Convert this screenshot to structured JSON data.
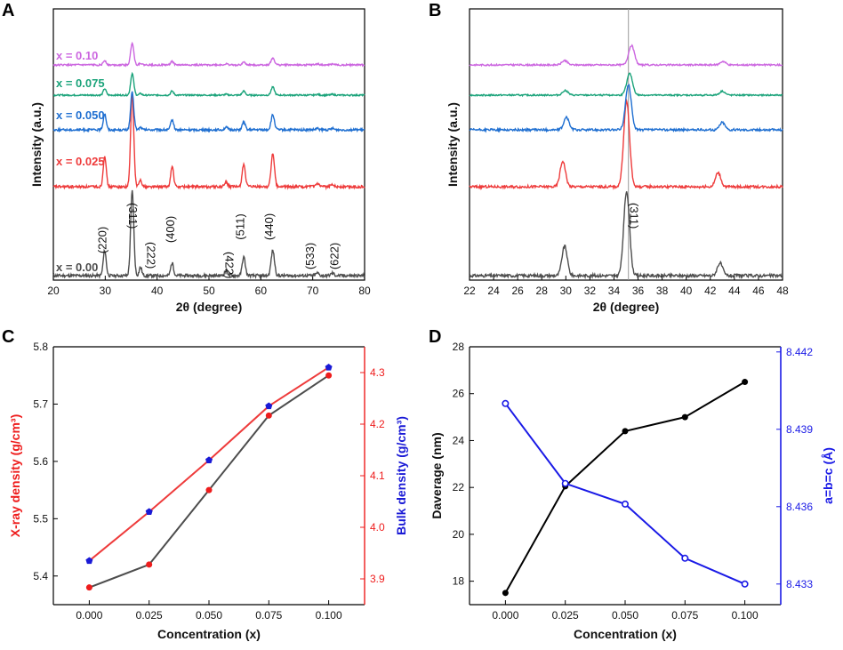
{
  "chart_data": [
    {
      "panel": "A",
      "type": "line",
      "xlabel": "2θ (degree)",
      "ylabel": "Intensity (a.u.)",
      "xlim": [
        20,
        80
      ],
      "xticks": [
        20,
        30,
        40,
        50,
        60,
        70,
        80
      ],
      "peaks": [
        29.9,
        35.2,
        36.8,
        42.9,
        53.3,
        56.7,
        62.3,
        70.9,
        73.8
      ],
      "peak_labels": [
        {
          "label": "(220)",
          "x": 29.9
        },
        {
          "label": "(311)",
          "x": 35.2
        },
        {
          "label": "(222)",
          "x": 36.8
        },
        {
          "label": "(400)",
          "x": 42.9
        },
        {
          "label": "(422)",
          "x": 53.3
        },
        {
          "label": "(511)",
          "x": 56.7
        },
        {
          "label": "(440)",
          "x": 62.3
        },
        {
          "label": "(533)",
          "x": 70.9
        },
        {
          "label": "(622)",
          "x": 73.8
        }
      ],
      "series": [
        {
          "name": "x = 0.00",
          "color": "#4d4d4d",
          "heights": [
            0.3,
            1.0,
            0.1,
            0.15,
            0.06,
            0.22,
            0.3,
            0.03,
            0.03
          ]
        },
        {
          "name": "x = 0.025",
          "color": "#ee3b3b",
          "heights": [
            0.22,
            0.65,
            0.05,
            0.14,
            0.03,
            0.16,
            0.23,
            0.02,
            0.02
          ]
        },
        {
          "name": "x = 0.050",
          "color": "#1f6fd1",
          "heights": [
            0.13,
            0.3,
            0.02,
            0.08,
            0.02,
            0.06,
            0.12,
            0.01,
            0.01
          ]
        },
        {
          "name": "x = 0.075",
          "color": "#1aa37a",
          "heights": [
            0.08,
            0.27,
            0.02,
            0.05,
            0.01,
            0.05,
            0.1,
            0.01,
            0.01
          ]
        },
        {
          "name": "x = 0.10",
          "color": "#cc66e0",
          "heights": [
            0.05,
            0.25,
            0.02,
            0.04,
            0.01,
            0.03,
            0.08,
            0.01,
            0.01
          ]
        }
      ]
    },
    {
      "panel": "B",
      "type": "line",
      "xlabel": "2θ (degree)",
      "ylabel": "Intensity (a.u.)",
      "xlim": [
        22,
        48
      ],
      "xticks": [
        22,
        24,
        26,
        28,
        30,
        32,
        34,
        36,
        38,
        40,
        42,
        44,
        46,
        48
      ],
      "reference_line_x": 35.2,
      "annotation": {
        "label": "(311)",
        "x": 35.2
      },
      "peaks": [
        29.9,
        35.2,
        42.9
      ],
      "series": [
        {
          "name": "x = 0.00",
          "color": "#4d4d4d",
          "centers": [
            29.9,
            35.05,
            42.8
          ],
          "heights": [
            0.35,
            1.0,
            0.15
          ]
        },
        {
          "name": "x = 0.025",
          "color": "#ee3b3b",
          "centers": [
            29.75,
            35.05,
            42.65
          ],
          "heights": [
            0.18,
            0.6,
            0.1
          ]
        },
        {
          "name": "x = 0.050",
          "color": "#1f6fd1",
          "centers": [
            30.05,
            35.2,
            43.0
          ],
          "heights": [
            0.1,
            0.36,
            0.06
          ]
        },
        {
          "name": "x = 0.075",
          "color": "#1aa37a",
          "centers": [
            29.95,
            35.3,
            43.0
          ],
          "heights": [
            0.06,
            0.27,
            0.05
          ]
        },
        {
          "name": "x = 0.10",
          "color": "#cc66e0",
          "centers": [
            29.9,
            35.45,
            43.05
          ],
          "heights": [
            0.05,
            0.22,
            0.04
          ]
        }
      ]
    },
    {
      "panel": "C",
      "type": "line",
      "xlabel": "Concentration (x)",
      "ylabel_left": "X-ray density (g/cm³)",
      "ylabel_right": "Bulk density (g/cm³)",
      "x": [
        0.0,
        0.025,
        0.05,
        0.075,
        0.1
      ],
      "xticks": [
        "0.000",
        "0.025",
        "0.050",
        "0.075",
        "0.100"
      ],
      "xlim": [
        -0.015,
        0.115
      ],
      "ylim_left": [
        5.35,
        5.8
      ],
      "yticks_left": [
        "5.4",
        "5.5",
        "5.6",
        "5.7",
        "5.8"
      ],
      "ylim_right": [
        3.85,
        4.35
      ],
      "yticks_right": [
        "3.9",
        "4.0",
        "4.1",
        "4.2",
        "4.3"
      ],
      "series": [
        {
          "name": "X-ray density",
          "axis": "left",
          "line_color": "#4d4d4d",
          "marker_color": "#ee1c1c",
          "marker": "circle",
          "values": [
            5.38,
            5.42,
            5.55,
            5.68,
            5.75
          ]
        },
        {
          "name": "Bulk density",
          "axis": "right",
          "line_color": "#ee3b3b",
          "marker_color": "#1a1ad6",
          "marker": "pentagon",
          "values": [
            3.935,
            4.03,
            4.13,
            4.235,
            4.31
          ]
        }
      ]
    },
    {
      "panel": "D",
      "type": "line",
      "xlabel": "Concentration (x)",
      "ylabel_left": "Daverage (nm)",
      "ylabel_right": "a=b=c (Å)",
      "x": [
        0.0,
        0.025,
        0.05,
        0.075,
        0.1
      ],
      "xticks": [
        "0.000",
        "0.025",
        "0.050",
        "0.075",
        "0.100"
      ],
      "xlim": [
        -0.015,
        0.115
      ],
      "ylim_left": [
        17,
        28
      ],
      "yticks_left": [
        "18",
        "20",
        "22",
        "24",
        "26",
        "28"
      ],
      "ylim_right": [
        8.4322,
        8.4422
      ],
      "yticks_right": [
        "8.433",
        "8.436",
        "8.439",
        "8.442"
      ],
      "series": [
        {
          "name": "Daverage",
          "axis": "left",
          "color": "#000000",
          "values": [
            17.5,
            22.05,
            24.4,
            25.0,
            26.5
          ]
        },
        {
          "name": "a=b=c",
          "axis": "right",
          "color": "#1a1ae6",
          "values": [
            8.44,
            8.4369,
            8.4361,
            8.434,
            8.433
          ]
        }
      ]
    }
  ],
  "panel_letters": [
    "A",
    "B",
    "C",
    "D"
  ]
}
